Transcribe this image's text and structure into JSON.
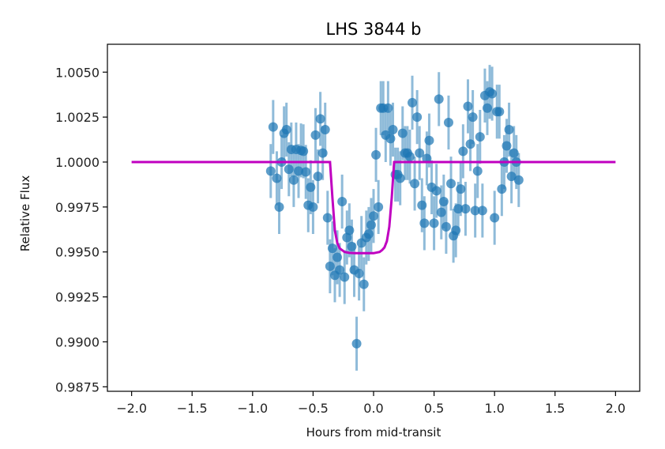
{
  "chart_data": {
    "type": "scatter",
    "title": "LHS 3844 b",
    "xlabel": "Hours from mid-transit",
    "ylabel": "Relative Flux",
    "xlim": [
      -2.2,
      2.2
    ],
    "ylim": [
      0.98725,
      1.00655
    ],
    "xticks": [
      "-2.0",
      "-1.5",
      "-1.0",
      "-0.5",
      "0.0",
      "0.5",
      "1.0",
      "1.5",
      "2.0"
    ],
    "yticks": [
      "0.9875",
      "0.9900",
      "0.9925",
      "0.9950",
      "0.9975",
      "1.0000",
      "1.0025",
      "1.0050"
    ],
    "grid": false,
    "colors": {
      "points": "#1f77b4",
      "model": "#c000c0",
      "axes": "#000000"
    },
    "series": [
      {
        "type": "errorbar",
        "x": [
          -0.85,
          -0.83,
          -0.8,
          -0.78,
          -0.76,
          -0.74,
          -0.72,
          -0.7,
          -0.68,
          -0.66,
          -0.64,
          -0.62,
          -0.6,
          -0.58,
          -0.56,
          -0.54,
          -0.52,
          -0.5,
          -0.48,
          -0.46,
          -0.44,
          -0.42,
          -0.4,
          -0.38,
          -0.36,
          -0.34,
          -0.32,
          -0.3,
          -0.28,
          -0.26,
          -0.24,
          -0.22,
          -0.2,
          -0.18,
          -0.16,
          -0.14,
          -0.12,
          -0.1,
          -0.08,
          -0.06,
          -0.04,
          -0.02,
          0.0,
          0.02,
          0.04,
          0.06,
          0.08,
          0.1,
          0.12,
          0.14,
          0.16,
          0.18,
          0.2,
          0.22,
          0.24,
          0.26,
          0.28,
          0.3,
          0.32,
          0.34,
          0.36,
          0.38,
          0.4,
          0.42,
          0.44,
          0.46,
          0.48,
          0.5,
          0.52,
          0.54,
          0.56,
          0.58,
          0.6,
          0.62,
          0.64,
          0.66,
          0.68,
          0.7,
          0.72,
          0.74,
          0.76,
          0.78,
          0.8,
          0.82,
          0.84,
          0.86,
          0.88,
          0.9,
          0.92,
          0.94,
          0.96,
          0.98,
          1.0,
          1.02,
          1.04,
          1.06,
          1.08,
          1.1,
          1.12,
          1.14,
          1.16,
          1.18,
          1.2
        ],
        "y": [
          0.9995,
          1.00195,
          0.9991,
          0.9975,
          1.0,
          1.0016,
          1.0018,
          0.9996,
          1.0007,
          0.999,
          1.0007,
          0.9995,
          1.00065,
          1.0006,
          0.99945,
          0.9976,
          0.9986,
          0.9975,
          1.0015,
          0.9992,
          1.0024,
          1.0005,
          1.0018,
          0.9969,
          0.9942,
          0.9952,
          0.9937,
          0.9947,
          0.994,
          0.9978,
          0.9936,
          0.9958,
          0.9962,
          0.9953,
          0.994,
          0.9899,
          0.9938,
          0.9955,
          0.9932,
          0.9958,
          0.996,
          0.9965,
          0.997,
          1.0004,
          0.9975,
          1.003,
          1.003,
          1.0015,
          1.003,
          1.0013,
          1.0018,
          0.9993,
          0.9993,
          0.9991,
          1.0016,
          1.0005,
          1.0005,
          1.0003,
          1.0033,
          0.9988,
          1.0025,
          1.0005,
          0.9976,
          0.9966,
          1.0002,
          1.0012,
          0.9986,
          0.9966,
          0.9984,
          1.0035,
          0.9972,
          0.9978,
          0.9964,
          1.0022,
          0.9988,
          0.9959,
          0.9962,
          0.9974,
          0.9985,
          1.0006,
          0.9974,
          1.0031,
          1.001,
          1.0025,
          0.9973,
          0.9995,
          1.0014,
          0.9973,
          1.0037,
          1.003,
          1.0039,
          1.0038,
          0.9969,
          1.0028,
          1.0028,
          0.9985,
          1.0,
          1.0009,
          1.0018,
          0.9992,
          1.0005,
          1.0,
          0.999
        ],
        "yerr": 0.0015
      },
      {
        "type": "line",
        "x": [
          -2.0,
          -0.36,
          -0.34,
          -0.32,
          -0.3,
          -0.28,
          -0.26,
          -0.24,
          -0.2,
          -0.15,
          -0.1,
          -0.05,
          0.0,
          0.05,
          0.07,
          0.09,
          0.11,
          0.13,
          0.15,
          0.17,
          2.0
        ],
        "y": [
          1.0,
          1.0,
          0.998,
          0.9962,
          0.9955,
          0.9952,
          0.9951,
          0.995,
          0.99495,
          0.99493,
          0.99493,
          0.99493,
          0.99493,
          0.995,
          0.9951,
          0.99525,
          0.9956,
          0.9964,
          0.998,
          1.0,
          1.0
        ]
      }
    ]
  }
}
